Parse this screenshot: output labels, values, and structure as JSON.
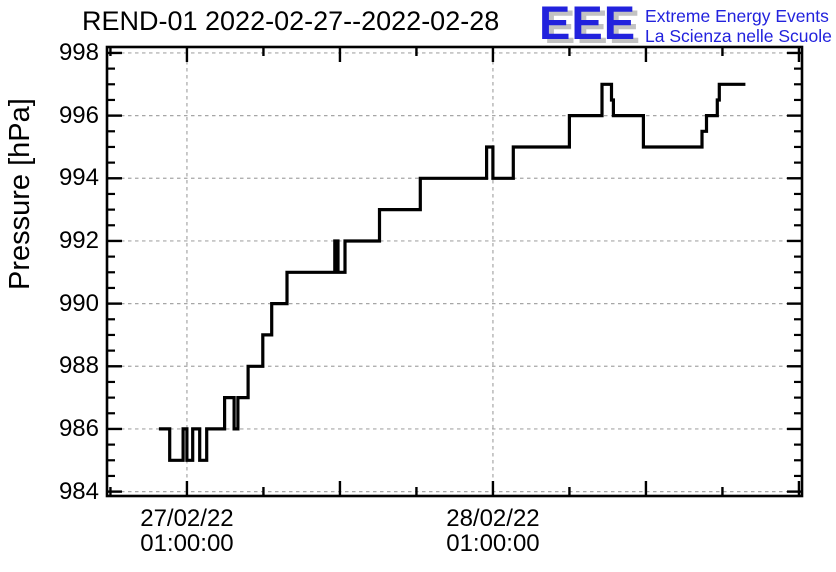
{
  "title": "REND-01 2022-02-27--2022-02-28",
  "logo": {
    "acronym": "EEE",
    "line1": "Extreme Energy Events",
    "line2": "La Scienza nelle Scuole",
    "text_color": "#2222dd",
    "shadow_color": "#c2c2c2"
  },
  "chart_data": {
    "type": "line",
    "line_style": "step-after",
    "title": "REND-01 2022-02-27--2022-02-28",
    "ylabel": "Pressure [hPa]",
    "xlabel": "",
    "x_unit": "hours since 2022-02-27 00:00:00",
    "xlim": [
      -5.27,
      49.24
    ],
    "ylim": [
      983.86,
      998.19
    ],
    "y_major_ticks": [
      984,
      986,
      988,
      990,
      992,
      994,
      996,
      998
    ],
    "y_minor_tick_step": 0.5,
    "x_tick_step_hours": 6,
    "x_major_tick_every_hours": 12,
    "x_labeled_ticks": [
      {
        "t": 1,
        "line1": "27/02/22",
        "line2": "01:00:00"
      },
      {
        "t": 25,
        "line1": "28/02/22",
        "line2": "01:00:00"
      }
    ],
    "grid": {
      "horizontal_at_y_majors": true,
      "vertical_at_labeled_ticks": true,
      "style": "dashed"
    },
    "line_color": "#000000",
    "grid_color": "#a6a6a6",
    "points": [
      [
        -1.2,
        986
      ],
      [
        -0.35,
        985
      ],
      [
        0.7,
        986
      ],
      [
        1.0,
        985
      ],
      [
        1.45,
        986
      ],
      [
        2.0,
        985
      ],
      [
        2.55,
        986
      ],
      [
        3.95,
        987
      ],
      [
        4.7,
        986
      ],
      [
        5.0,
        987
      ],
      [
        5.8,
        988
      ],
      [
        6.95,
        989
      ],
      [
        7.65,
        990
      ],
      [
        8.85,
        991
      ],
      [
        12.6,
        992
      ],
      [
        12.85,
        991
      ],
      [
        13.4,
        992
      ],
      [
        16.1,
        993
      ],
      [
        19.3,
        994
      ],
      [
        24.5,
        995
      ],
      [
        25.0,
        994
      ],
      [
        26.6,
        995
      ],
      [
        31.0,
        996
      ],
      [
        33.55,
        997
      ],
      [
        34.3,
        996.5
      ],
      [
        34.45,
        996
      ],
      [
        36.8,
        995
      ],
      [
        41.4,
        995.5
      ],
      [
        41.75,
        996
      ],
      [
        42.6,
        996.5
      ],
      [
        42.75,
        997
      ],
      [
        44.8,
        997
      ]
    ]
  }
}
